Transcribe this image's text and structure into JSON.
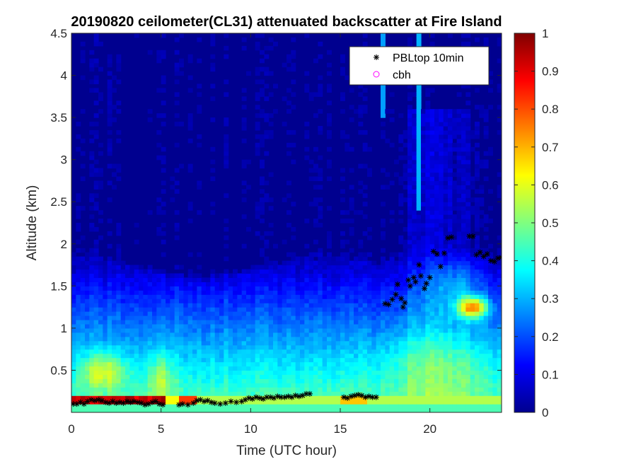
{
  "chart_data": {
    "type": "heatmap",
    "title": "20190820 ceilometer(CL31) attenuated backscatter at Fire Island",
    "xlabel": "Time (UTC hour)",
    "ylabel": "Altitude (km)",
    "xlim": [
      0,
      24
    ],
    "ylim": [
      0,
      4.5
    ],
    "xticks": [
      0,
      5,
      10,
      15,
      20
    ],
    "yticks": [
      0.5,
      1,
      1.5,
      2,
      2.5,
      3,
      3.5,
      4,
      4.5
    ],
    "colorbar": {
      "colormap": "jet",
      "range": [
        0,
        1
      ],
      "ticks": [
        0,
        0.1,
        0.2,
        0.3,
        0.4,
        0.5,
        0.6,
        0.7,
        0.8,
        0.9,
        1
      ]
    },
    "legend": {
      "location": "top-right",
      "entries": [
        "PBLtop 10min",
        "cbh"
      ]
    },
    "series": [
      {
        "name": "PBLtop 10min",
        "marker": "asterisk",
        "color": "#000000",
        "x": [
          0.1,
          0.3,
          0.5,
          0.7,
          0.9,
          1.1,
          1.3,
          1.5,
          1.7,
          1.9,
          2.1,
          2.3,
          2.5,
          2.7,
          2.9,
          3.1,
          3.3,
          3.5,
          3.7,
          3.9,
          4.1,
          4.3,
          4.5,
          4.7,
          4.9,
          5.1,
          6.0,
          6.2,
          6.5,
          6.8,
          7.0,
          7.2,
          7.4,
          7.6,
          7.8,
          8.0,
          8.3,
          8.6,
          8.9,
          9.2,
          9.5,
          9.7,
          9.9,
          10.1,
          10.3,
          10.5,
          10.7,
          10.9,
          11.1,
          11.3,
          11.5,
          11.7,
          11.9,
          12.1,
          12.3,
          12.5,
          12.7,
          12.9,
          13.1,
          13.3,
          15.2,
          15.4,
          15.6,
          15.8,
          16.0,
          16.2,
          16.4,
          16.6,
          16.8,
          17.0,
          17.5,
          17.7,
          17.9,
          18.1,
          18.2,
          18.4,
          18.5,
          18.6,
          18.8,
          18.9,
          19.1,
          19.2,
          19.4,
          19.5,
          19.7,
          19.8,
          20.0,
          20.2,
          20.4,
          20.6,
          20.8,
          21.0,
          21.2,
          22.2,
          22.4,
          22.6,
          22.8,
          23.0,
          23.2,
          23.4,
          23.6,
          23.8,
          24.0
        ],
        "y": [
          0.1,
          0.1,
          0.12,
          0.1,
          0.13,
          0.15,
          0.14,
          0.15,
          0.14,
          0.12,
          0.11,
          0.13,
          0.11,
          0.12,
          0.11,
          0.13,
          0.12,
          0.13,
          0.12,
          0.11,
          0.09,
          0.1,
          0.12,
          0.13,
          0.1,
          0.09,
          0.09,
          0.1,
          0.09,
          0.11,
          0.14,
          0.15,
          0.13,
          0.14,
          0.12,
          0.11,
          0.1,
          0.11,
          0.13,
          0.12,
          0.13,
          0.15,
          0.17,
          0.16,
          0.18,
          0.17,
          0.16,
          0.18,
          0.18,
          0.17,
          0.19,
          0.18,
          0.18,
          0.19,
          0.18,
          0.2,
          0.19,
          0.2,
          0.22,
          0.22,
          0.18,
          0.17,
          0.19,
          0.2,
          0.21,
          0.2,
          0.18,
          0.19,
          0.18,
          0.18,
          1.29,
          1.28,
          1.34,
          1.4,
          1.52,
          1.35,
          1.25,
          1.3,
          1.57,
          1.5,
          1.6,
          1.55,
          1.75,
          1.62,
          1.47,
          1.53,
          1.6,
          1.91,
          1.88,
          1.73,
          1.89,
          2.07,
          2.08,
          2.09,
          2.09,
          1.87,
          1.9,
          1.85,
          1.88,
          1.8,
          1.79,
          1.83,
          1.84
        ]
      },
      {
        "name": "cbh",
        "marker": "circle",
        "color": "#ff00ff",
        "x": [],
        "y": []
      }
    ]
  }
}
